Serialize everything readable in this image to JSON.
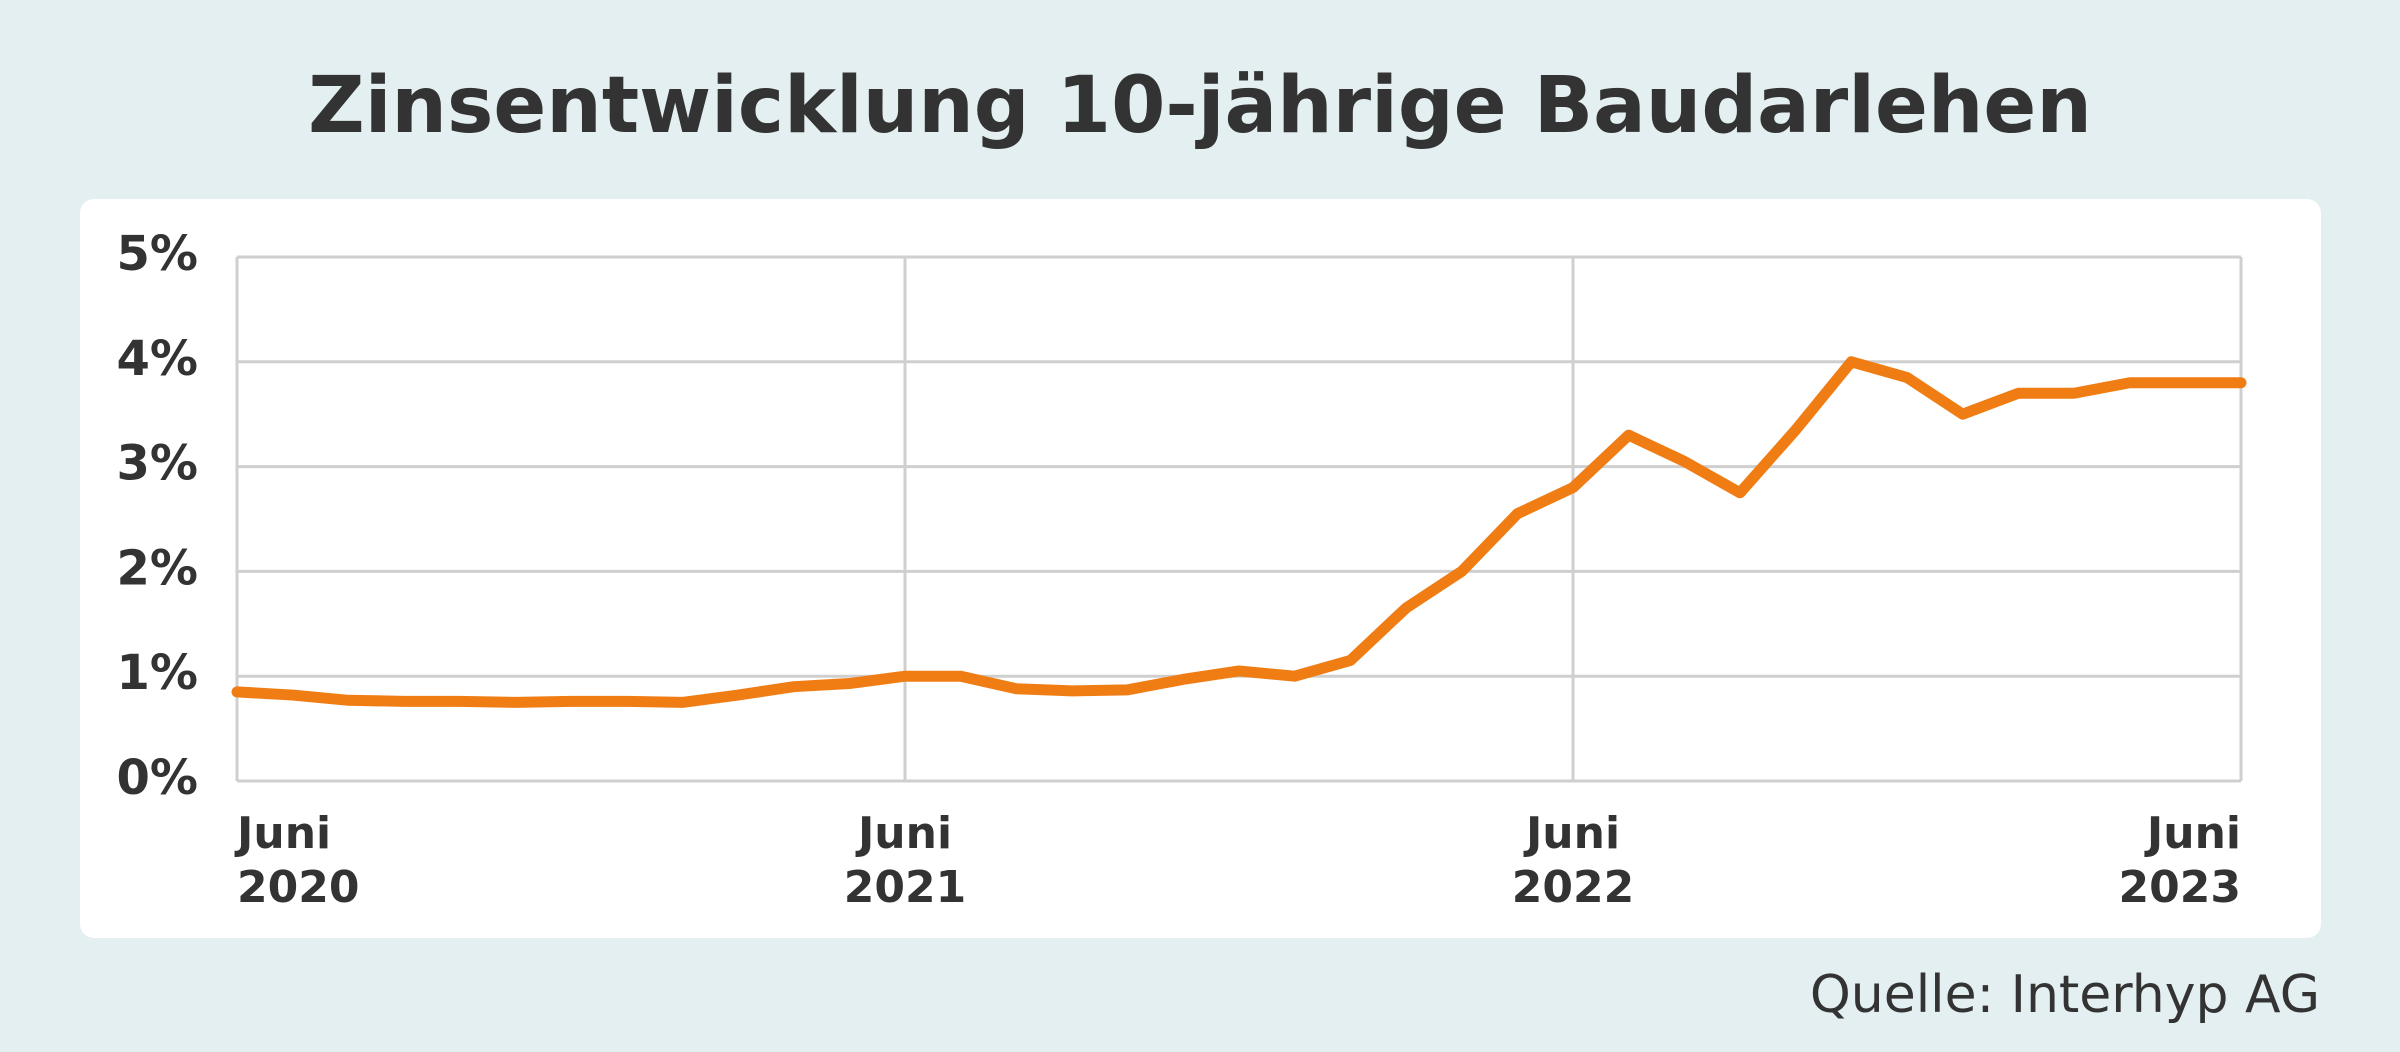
{
  "chart_data": {
    "type": "line",
    "title": "Zinsentwicklung 10-jährige Baudarlehen",
    "source": "Quelle: Interhyp AG",
    "x": [
      "2020-06",
      "2020-07",
      "2020-08",
      "2020-09",
      "2020-10",
      "2020-11",
      "2020-12",
      "2021-01",
      "2021-02",
      "2021-03",
      "2021-04",
      "2021-05",
      "2021-06",
      "2021-07",
      "2021-08",
      "2021-09",
      "2021-10",
      "2021-11",
      "2021-12",
      "2022-01",
      "2022-02",
      "2022-03",
      "2022-04",
      "2022-05",
      "2022-06",
      "2022-07",
      "2022-08",
      "2022-09",
      "2022-10",
      "2022-11",
      "2022-12",
      "2023-01",
      "2023-02",
      "2023-03",
      "2023-04",
      "2023-05",
      "2023-06"
    ],
    "series": [
      {
        "color": "#f07d14",
        "values": [
          0.85,
          0.82,
          0.77,
          0.76,
          0.76,
          0.75,
          0.76,
          0.76,
          0.75,
          0.82,
          0.9,
          0.93,
          1.0,
          1.0,
          0.88,
          0.86,
          0.87,
          0.97,
          1.05,
          1.0,
          1.15,
          1.65,
          2.0,
          2.55,
          2.8,
          3.3,
          3.05,
          2.75,
          3.35,
          4.0,
          3.85,
          3.5,
          3.7,
          3.7,
          3.8,
          3.8,
          3.8
        ]
      }
    ],
    "ylim": [
      0,
      5
    ],
    "yticks": [
      {
        "value": 0,
        "label": "0%"
      },
      {
        "value": 1,
        "label": "1%"
      },
      {
        "value": 2,
        "label": "2%"
      },
      {
        "value": 3,
        "label": "3%"
      },
      {
        "value": 4,
        "label": "4%"
      },
      {
        "value": 5,
        "label": "5%"
      }
    ],
    "xlim": [
      "2020-06",
      "2023-06"
    ],
    "xticks": [
      {
        "value": "2020-06",
        "label": "Juni 2020"
      },
      {
        "value": "2021-06",
        "label": "Juni 2021"
      },
      {
        "value": "2022-06",
        "label": "Juni 2022"
      },
      {
        "value": "2023-06",
        "label": "Juni 2023"
      }
    ],
    "grid": true
  }
}
